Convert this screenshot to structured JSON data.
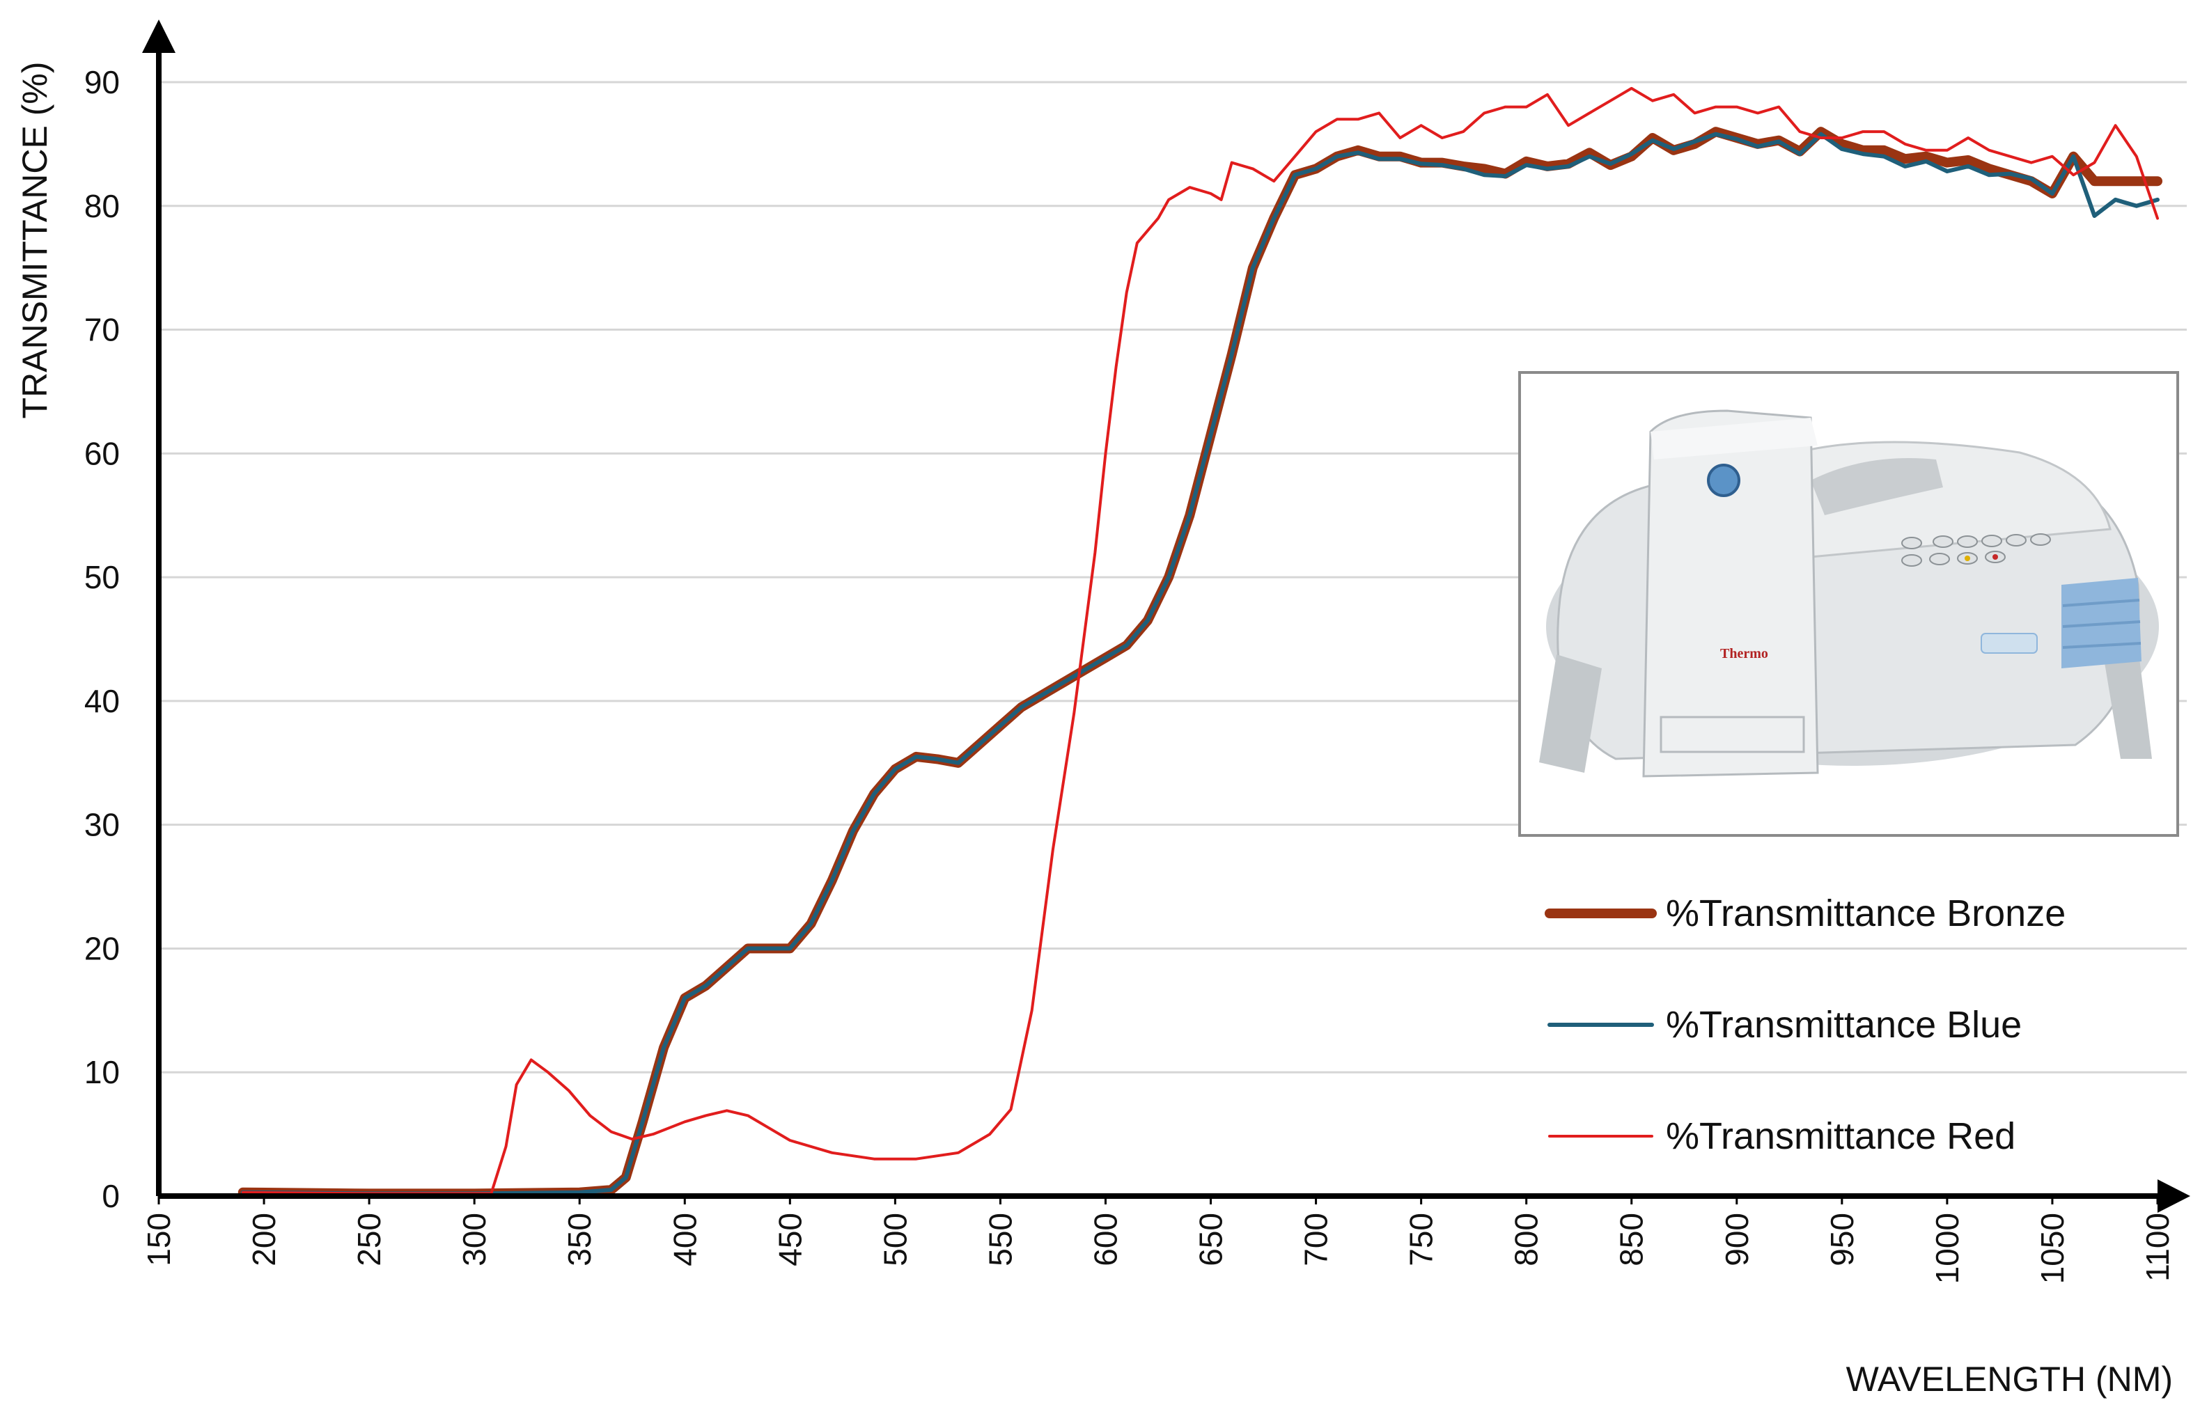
{
  "chart_data": {
    "type": "line",
    "title": "",
    "xlabel": "WAVELENGTH (NM)",
    "ylabel": "TRANSMITTANCE (%)",
    "xlim": [
      150,
      1100
    ],
    "ylim": [
      0,
      90
    ],
    "x_ticks": [
      "150",
      "200",
      "250",
      "300",
      "350",
      "400",
      "450",
      "500",
      "550",
      "600",
      "650",
      "700",
      "750",
      "800",
      "850",
      "900",
      "950",
      "1000",
      "1050",
      "1100"
    ],
    "y_ticks": [
      "0",
      "10",
      "20",
      "30",
      "40",
      "50",
      "60",
      "70",
      "80",
      "90"
    ],
    "grid": "horizontal",
    "legend_position": "bottom-right",
    "inset": "spectrophotometer photo (Thermo)",
    "series": [
      {
        "name": "%Transmittance Bronze",
        "color": "#9a3412",
        "x": [
          190,
          250,
          300,
          350,
          365,
          372,
          380,
          390,
          400,
          410,
          420,
          430,
          440,
          450,
          460,
          470,
          480,
          490,
          500,
          510,
          520,
          530,
          540,
          550,
          560,
          570,
          580,
          590,
          600,
          610,
          620,
          630,
          640,
          650,
          660,
          670,
          680,
          690,
          700,
          710,
          720,
          730,
          740,
          750,
          760,
          770,
          780,
          790,
          800,
          810,
          820,
          830,
          840,
          850,
          860,
          870,
          880,
          890,
          900,
          910,
          920,
          930,
          940,
          950,
          960,
          970,
          980,
          990,
          1000,
          1010,
          1020,
          1030,
          1040,
          1050,
          1060,
          1070,
          1080,
          1090,
          1100
        ],
        "values": [
          0.3,
          0.2,
          0.2,
          0.3,
          0.5,
          1.5,
          6,
          12,
          16,
          17,
          18.5,
          20,
          20,
          20,
          22,
          25.5,
          29.5,
          32.5,
          34.5,
          35.5,
          35.3,
          35,
          36.5,
          38,
          39.5,
          40.5,
          41.5,
          42.5,
          43.5,
          44.5,
          46.5,
          50,
          55,
          61.5,
          68,
          75,
          79,
          82.5,
          83,
          84,
          84.5,
          84,
          84,
          83.5,
          83.5,
          83.2,
          83,
          82.6,
          83.6,
          83.2,
          83.4,
          84.3,
          83.3,
          84,
          85.5,
          84.5,
          85,
          86,
          85.5,
          85,
          85.3,
          84.4,
          86,
          85,
          84.5,
          84.5,
          83.8,
          84,
          83.5,
          83.7,
          83,
          82.5,
          82,
          81,
          84,
          82,
          82,
          82,
          82
        ]
      },
      {
        "name": "%Transmittance Blue",
        "color": "#1f5f7a",
        "x": [
          190,
          250,
          300,
          350,
          365,
          372,
          380,
          390,
          400,
          410,
          420,
          430,
          440,
          450,
          460,
          470,
          480,
          490,
          500,
          510,
          520,
          530,
          540,
          550,
          560,
          570,
          580,
          590,
          600,
          610,
          620,
          630,
          640,
          650,
          660,
          670,
          680,
          690,
          700,
          710,
          720,
          730,
          740,
          750,
          760,
          770,
          780,
          790,
          800,
          810,
          820,
          830,
          840,
          850,
          860,
          870,
          880,
          890,
          900,
          910,
          920,
          930,
          940,
          950,
          960,
          970,
          980,
          990,
          1000,
          1010,
          1020,
          1030,
          1040,
          1050,
          1060,
          1070,
          1080,
          1090,
          1100
        ],
        "values": [
          0.3,
          0.2,
          0.2,
          0.3,
          0.5,
          1.5,
          6,
          12,
          16,
          17,
          18.5,
          20,
          20,
          20,
          22,
          25.5,
          29.5,
          32.5,
          34.5,
          35.5,
          35.3,
          35,
          36.5,
          38,
          39.5,
          40.5,
          41.5,
          42.5,
          43.5,
          44.5,
          46.5,
          50,
          55,
          61.5,
          68,
          75,
          79,
          82.5,
          83,
          84,
          84.3,
          83.8,
          83.8,
          83.4,
          83.3,
          83,
          82.5,
          82.4,
          83.3,
          83,
          83.2,
          84,
          83.4,
          84.2,
          85.3,
          84.6,
          85.2,
          85.8,
          85.4,
          84.8,
          85.2,
          84.2,
          85.8,
          84.6,
          84.2,
          84,
          83.2,
          83.6,
          82.8,
          83.2,
          82.5,
          82.6,
          82.2,
          81,
          84,
          79.2,
          80.5,
          80,
          80.5
        ]
      },
      {
        "name": "%Transmittance Red",
        "color": "#e11d1d",
        "x": [
          190,
          250,
          300,
          308,
          315,
          320,
          327,
          335,
          345,
          355,
          365,
          375,
          385,
          400,
          410,
          420,
          430,
          440,
          450,
          470,
          490,
          510,
          530,
          545,
          555,
          565,
          575,
          585,
          595,
          600,
          605,
          610,
          615,
          620,
          625,
          630,
          640,
          650,
          655,
          660,
          670,
          680,
          690,
          700,
          710,
          720,
          730,
          740,
          750,
          760,
          770,
          780,
          790,
          800,
          810,
          820,
          830,
          840,
          850,
          860,
          870,
          880,
          890,
          900,
          910,
          920,
          930,
          940,
          950,
          960,
          970,
          980,
          990,
          1000,
          1010,
          1020,
          1030,
          1040,
          1050,
          1060,
          1070,
          1080,
          1090,
          1100
        ],
        "values": [
          0.3,
          0.2,
          0.2,
          0.2,
          4,
          9,
          11,
          10,
          8.5,
          6.5,
          5.2,
          4.6,
          5,
          6,
          6.5,
          6.9,
          6.5,
          5.5,
          4.5,
          3.5,
          3,
          3,
          3.5,
          5,
          7,
          15,
          28,
          39,
          52,
          60,
          67,
          73,
          77,
          78,
          79,
          80.5,
          81.5,
          81,
          80.5,
          83.5,
          83,
          82,
          84,
          86,
          87,
          87,
          87.5,
          85.5,
          86.5,
          85.5,
          86,
          87.5,
          88,
          88,
          89,
          86.5,
          87.5,
          88.5,
          89.5,
          88.5,
          89,
          87.5,
          88,
          88,
          87.5,
          88,
          86,
          85.5,
          85.5,
          86,
          86,
          85,
          84.5,
          84.5,
          85.5,
          84.5,
          84,
          83.5,
          84,
          82.5,
          83.5,
          86.5,
          84,
          79
        ]
      }
    ]
  }
}
